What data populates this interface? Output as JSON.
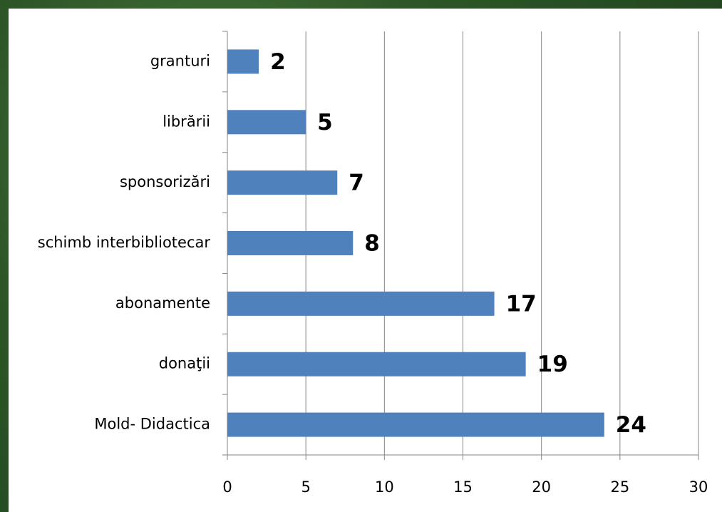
{
  "chart_data": {
    "type": "bar",
    "orientation": "horizontal",
    "categories": [
      "granturi",
      "librării",
      "sponsorizări",
      "schimb interbibliotecar",
      "abonamente",
      "donaţii",
      "Mold- Didactica"
    ],
    "values": [
      2,
      5,
      7,
      8,
      17,
      19,
      24
    ],
    "color": "#4f81bd",
    "xlim": [
      0,
      30
    ],
    "xticks": [
      0,
      5,
      10,
      15,
      20,
      25,
      30
    ],
    "grid": true
  }
}
